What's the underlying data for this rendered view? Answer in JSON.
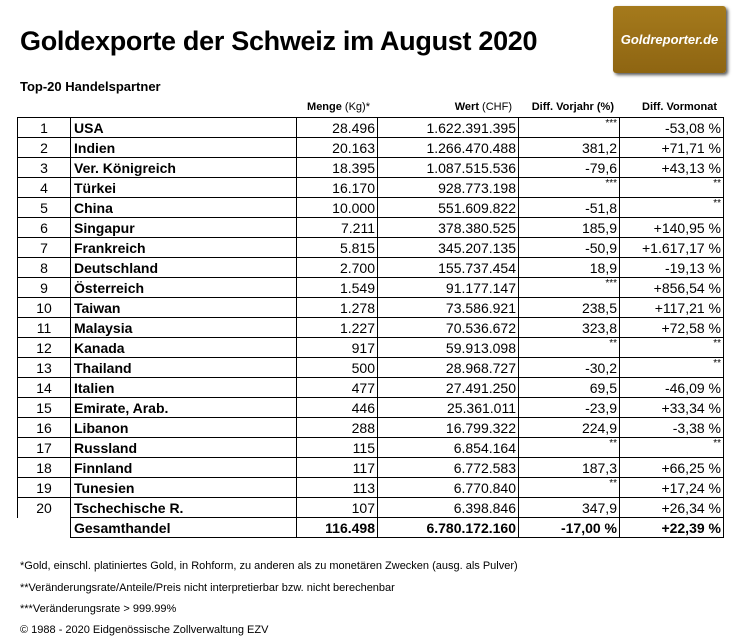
{
  "title": "Goldexporte der Schweiz im August 2020",
  "logo_text": "Goldreporter.de",
  "subtitle": "Top-20 Handelspartner",
  "headers": {
    "menge_bold": "Menge",
    "menge_unit": " (Kg)*",
    "wert_bold": "Wert",
    "wert_unit": " (CHF)",
    "diff_vorjahr": "Diff. Vorjahr (%)",
    "diff_vormonat": "Diff. Vormonat"
  },
  "rows": [
    [
      "1",
      "USA",
      "28.496",
      "1.622.391.395",
      "***",
      "-53,08 %"
    ],
    [
      "2",
      "Indien",
      "20.163",
      "1.266.470.488",
      "381,2",
      "+71,71 %"
    ],
    [
      "3",
      "Ver. Königreich",
      "18.395",
      "1.087.515.536",
      "-79,6",
      "+43,13 %"
    ],
    [
      "4",
      "Türkei",
      "16.170",
      "928.773.198",
      "***",
      "**"
    ],
    [
      "5",
      "China",
      "10.000",
      "551.609.822",
      "-51,8",
      "**"
    ],
    [
      "6",
      "Singapur",
      "7.211",
      "378.380.525",
      "185,9",
      "+140,95 %"
    ],
    [
      "7",
      "Frankreich",
      "5.815",
      "345.207.135",
      "-50,9",
      "+1.617,17 %"
    ],
    [
      "8",
      "Deutschland",
      "2.700",
      "155.737.454",
      "18,9",
      "-19,13 %"
    ],
    [
      "9",
      "Österreich",
      "1.549",
      "91.177.147",
      "***",
      "+856,54 %"
    ],
    [
      "10",
      "Taiwan",
      "1.278",
      "73.586.921",
      "238,5",
      "+117,21 %"
    ],
    [
      "11",
      "Malaysia",
      "1.227",
      "70.536.672",
      "323,8",
      "+72,58 %"
    ],
    [
      "12",
      "Kanada",
      "917",
      "59.913.098",
      "**",
      "**"
    ],
    [
      "13",
      "Thailand",
      "500",
      "28.968.727",
      "-30,2",
      "**"
    ],
    [
      "14",
      "Italien",
      "477",
      "27.491.250",
      "69,5",
      "-46,09 %"
    ],
    [
      "15",
      "Emirate, Arab.",
      "446",
      "25.361.011",
      "-23,9",
      "+33,34 %"
    ],
    [
      "16",
      "Libanon",
      "288",
      "16.799.322",
      "224,9",
      "-3,38 %"
    ],
    [
      "17",
      "Russland",
      "115",
      "6.854.164",
      "**",
      "**"
    ],
    [
      "18",
      "Finnland",
      "117",
      "6.772.583",
      "187,3",
      "+66,25 %"
    ],
    [
      "19",
      "Tunesien",
      "113",
      "6.770.840",
      "**",
      "+17,24 %"
    ],
    [
      "20",
      "Tschechische R.",
      "107",
      "6.398.846",
      "347,9",
      "+26,34 %"
    ]
  ],
  "total": {
    "label": "Gesamthandel",
    "menge": "116.498",
    "wert": "6.780.172.160",
    "diff_vorjahr": "-17,00 %",
    "diff_vormonat": "+22,39 %"
  },
  "footnotes": [
    "*Gold, einschl. platiniertes Gold, in Rohform, zu anderen als zu monetären Zwecken (ausg. als Pulver)",
    "**Veränderungsrate/Anteile/Preis nicht interpretierbar bzw. nicht berechenbar",
    "***Veränderungsrate > 999.99%",
    "© 1988 - 2020 Eidgenössische Zollverwaltung EZV"
  ]
}
